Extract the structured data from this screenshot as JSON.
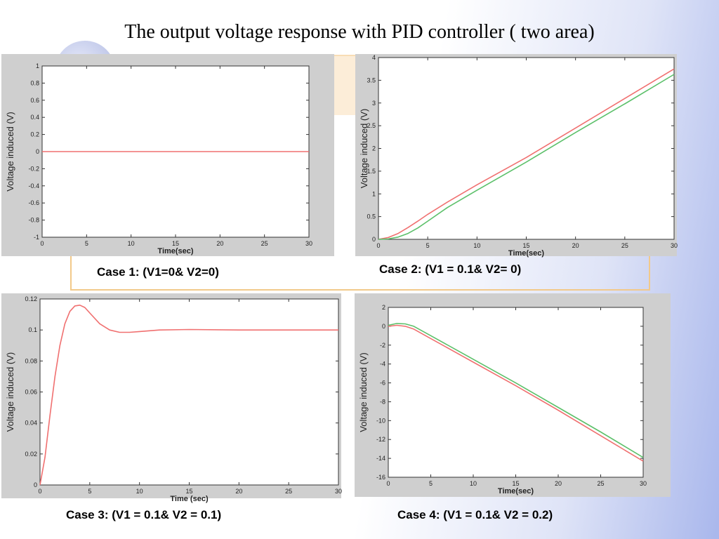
{
  "slide": {
    "title": "The output voltage response with PID controller  ( two area)"
  },
  "colors": {
    "series_a": "#f07070",
    "series_b": "#5cc06a"
  },
  "chart_data": [
    {
      "id": "case1",
      "type": "line",
      "caption": "Case 1: (V1=0& V2=0)",
      "xlabel": "Time(sec)",
      "ylabel": "Voltage induced (V)",
      "xlim": [
        0,
        30
      ],
      "ylim": [
        -1,
        1
      ],
      "xticks": [
        0,
        5,
        10,
        15,
        20,
        25,
        30
      ],
      "yticks": [
        -1,
        -0.8,
        -0.6,
        -0.4,
        -0.2,
        0,
        0.2,
        0.4,
        0.6,
        0.8,
        1
      ],
      "grid": false,
      "series": [
        {
          "color": "#f07070",
          "points": [
            [
              0,
              0
            ],
            [
              30,
              0
            ]
          ]
        }
      ]
    },
    {
      "id": "case2",
      "type": "line",
      "caption": "Case 2: (V1 = 0.1& V2= 0)",
      "xlabel": "Time(sec)",
      "ylabel": "Voltage induced (V)",
      "xlim": [
        0,
        30
      ],
      "ylim": [
        0,
        4
      ],
      "xticks": [
        0,
        5,
        10,
        15,
        20,
        25,
        30
      ],
      "yticks": [
        0,
        0.5,
        1,
        1.5,
        2,
        2.5,
        3,
        3.5,
        4
      ],
      "grid": false,
      "series": [
        {
          "color": "#f07070",
          "points": [
            [
              0,
              0
            ],
            [
              1,
              0.04
            ],
            [
              2,
              0.13
            ],
            [
              3,
              0.26
            ],
            [
              4,
              0.4
            ],
            [
              5,
              0.55
            ],
            [
              7,
              0.82
            ],
            [
              10,
              1.2
            ],
            [
              15,
              1.8
            ],
            [
              20,
              2.45
            ],
            [
              25,
              3.1
            ],
            [
              30,
              3.75
            ]
          ]
        },
        {
          "color": "#5cc06a",
          "points": [
            [
              0,
              0
            ],
            [
              1,
              0.01
            ],
            [
              2,
              0.05
            ],
            [
              3,
              0.13
            ],
            [
              4,
              0.25
            ],
            [
              5,
              0.4
            ],
            [
              7,
              0.7
            ],
            [
              10,
              1.08
            ],
            [
              15,
              1.7
            ],
            [
              20,
              2.35
            ],
            [
              25,
              2.98
            ],
            [
              30,
              3.63
            ]
          ]
        }
      ]
    },
    {
      "id": "case3",
      "type": "line",
      "caption": "Case 3: (V1 = 0.1& V2 = 0.1)",
      "xlabel": "Time (sec)",
      "ylabel": "Voltage induced (V)",
      "xlim": [
        0,
        30
      ],
      "ylim": [
        0,
        0.12
      ],
      "xticks": [
        0,
        5,
        10,
        15,
        20,
        25,
        30
      ],
      "yticks": [
        0,
        0.02,
        0.04,
        0.06,
        0.08,
        0.1,
        0.12
      ],
      "grid": false,
      "series": [
        {
          "color": "#f07070",
          "points": [
            [
              0,
              0
            ],
            [
              0.5,
              0.018
            ],
            [
              1,
              0.045
            ],
            [
              1.5,
              0.07
            ],
            [
              2,
              0.09
            ],
            [
              2.5,
              0.104
            ],
            [
              3,
              0.112
            ],
            [
              3.5,
              0.1155
            ],
            [
              4,
              0.116
            ],
            [
              4.5,
              0.1145
            ],
            [
              5,
              0.111
            ],
            [
              6,
              0.104
            ],
            [
              7,
              0.1
            ],
            [
              8,
              0.0985
            ],
            [
              9,
              0.0985
            ],
            [
              10,
              0.099
            ],
            [
              12,
              0.1
            ],
            [
              15,
              0.1003
            ],
            [
              20,
              0.1
            ],
            [
              25,
              0.1
            ],
            [
              30,
              0.1
            ]
          ]
        }
      ]
    },
    {
      "id": "case4",
      "type": "line",
      "caption": "Case 4: (V1 = 0.1& V2 = 0.2)",
      "xlabel": "Time(sec)",
      "ylabel": "Voltage induced  (V)",
      "xlim": [
        0,
        30
      ],
      "ylim": [
        -16,
        2
      ],
      "xticks": [
        0,
        5,
        10,
        15,
        20,
        25,
        30
      ],
      "yticks": [
        -16,
        -14,
        -12,
        -10,
        -8,
        -6,
        -4,
        -2,
        0,
        2
      ],
      "grid": false,
      "series": [
        {
          "color": "#f07070",
          "points": [
            [
              0,
              0
            ],
            [
              1,
              0.1
            ],
            [
              2,
              0
            ],
            [
              3,
              -0.3
            ],
            [
              5,
              -1.3
            ],
            [
              10,
              -3.8
            ],
            [
              15,
              -6.3
            ],
            [
              20,
              -8.9
            ],
            [
              25,
              -11.6
            ],
            [
              30,
              -14.3
            ]
          ]
        },
        {
          "color": "#5cc06a",
          "points": [
            [
              0,
              0.1
            ],
            [
              1,
              0.3
            ],
            [
              2,
              0.25
            ],
            [
              3,
              0
            ],
            [
              5,
              -1
            ],
            [
              10,
              -3.5
            ],
            [
              15,
              -6
            ],
            [
              20,
              -8.6
            ],
            [
              25,
              -11.2
            ],
            [
              30,
              -13.9
            ]
          ]
        }
      ]
    }
  ]
}
